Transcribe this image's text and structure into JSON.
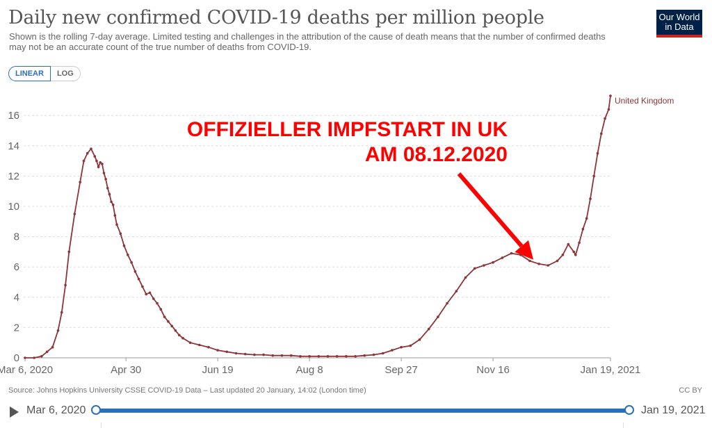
{
  "header": {
    "title": "Daily new confirmed COVID-19 deaths per million people",
    "subtitle": "Shown is the rolling 7-day average. Limited testing and challenges in the attribution of the cause of death means that the number of confirmed deaths may not be an accurate count of the true number of deaths from COVID-19.",
    "logo_line1": "Our World",
    "logo_line2": "in Data"
  },
  "scale_toggle": {
    "linear_label": "LINEAR",
    "log_label": "LOG",
    "selected": "LINEAR"
  },
  "colors": {
    "series": "#8c3438",
    "annotation": "#ff0000",
    "accent": "#2a6fb7",
    "logo_bg": "#002147",
    "logo_bar": "#ce261e"
  },
  "chart_data": {
    "type": "line",
    "title": "Daily new confirmed COVID-19 deaths per million people",
    "x_tick_labels": [
      "Mar 6, 2020",
      "Apr 30",
      "Jun 19",
      "Aug 8",
      "Sep 27",
      "Nov 16",
      "Jan 19, 2021"
    ],
    "x_tick_days": [
      0,
      55,
      105,
      155,
      205,
      255,
      319
    ],
    "y_ticks": [
      0,
      2,
      4,
      6,
      8,
      10,
      12,
      14,
      16
    ],
    "ylim": [
      0,
      17.5
    ],
    "grid": "horizontal dashed",
    "series": [
      {
        "name": "United Kingdom",
        "x_days": [
          0,
          5,
          9,
          12,
          15,
          18,
          20,
          22,
          24,
          27,
          30,
          32,
          34,
          36,
          38,
          39,
          40,
          41,
          42,
          43,
          44,
          45,
          46,
          47,
          48,
          49,
          50,
          52,
          54,
          56,
          58,
          60,
          62,
          64,
          66,
          68,
          70,
          72,
          74,
          76,
          78,
          80,
          82,
          84,
          86,
          90,
          95,
          100,
          105,
          110,
          115,
          120,
          125,
          130,
          135,
          140,
          145,
          150,
          155,
          160,
          165,
          170,
          175,
          180,
          185,
          190,
          195,
          200,
          205,
          210,
          215,
          220,
          225,
          230,
          235,
          240,
          245,
          250,
          255,
          260,
          265,
          270,
          275,
          280,
          285,
          290,
          293,
          296,
          299,
          300,
          302,
          304,
          306,
          308,
          310,
          312,
          314,
          316,
          318,
          319
        ],
        "values": [
          0,
          0,
          0.1,
          0.4,
          0.7,
          1.8,
          3.0,
          4.8,
          7.0,
          9.5,
          11.6,
          13.0,
          13.5,
          13.8,
          13.3,
          13.0,
          12.6,
          12.9,
          12.8,
          12.2,
          11.8,
          11.2,
          10.8,
          10.3,
          10.1,
          9.4,
          8.8,
          8.2,
          7.4,
          6.8,
          6.3,
          5.7,
          5.2,
          4.7,
          4.2,
          4.3,
          3.9,
          3.6,
          3.2,
          2.7,
          2.4,
          2.1,
          1.8,
          1.5,
          1.3,
          1.0,
          0.85,
          0.7,
          0.5,
          0.4,
          0.3,
          0.25,
          0.2,
          0.2,
          0.15,
          0.15,
          0.15,
          0.1,
          0.1,
          0.1,
          0.1,
          0.1,
          0.1,
          0.1,
          0.15,
          0.2,
          0.3,
          0.5,
          0.7,
          0.8,
          1.2,
          1.9,
          2.7,
          3.6,
          4.4,
          5.3,
          5.9,
          6.1,
          6.3,
          6.6,
          6.9,
          6.8,
          6.4,
          6.2,
          6.1,
          6.4,
          6.8,
          7.5,
          7.0,
          6.8,
          7.6,
          8.5,
          9.2,
          10.5,
          12.0,
          13.5,
          14.8,
          15.8,
          16.4,
          17.3
        ]
      }
    ],
    "series_end_label": "United Kingdom"
  },
  "annotation": {
    "line1": "OFFIZIELLER IMPFSTART IN UK",
    "line2": "AM 08.12.2020",
    "arrow_target_day": 277,
    "arrow_target_value": 6.2
  },
  "footer": {
    "source": "Source: Johns Hopkins University CSSE COVID-19 Data – Last updated 20 January, 14:02 (London time)",
    "license": "CC BY"
  },
  "timeline": {
    "start_label": "Mar 6, 2020",
    "end_label": "Jan 19, 2021"
  }
}
